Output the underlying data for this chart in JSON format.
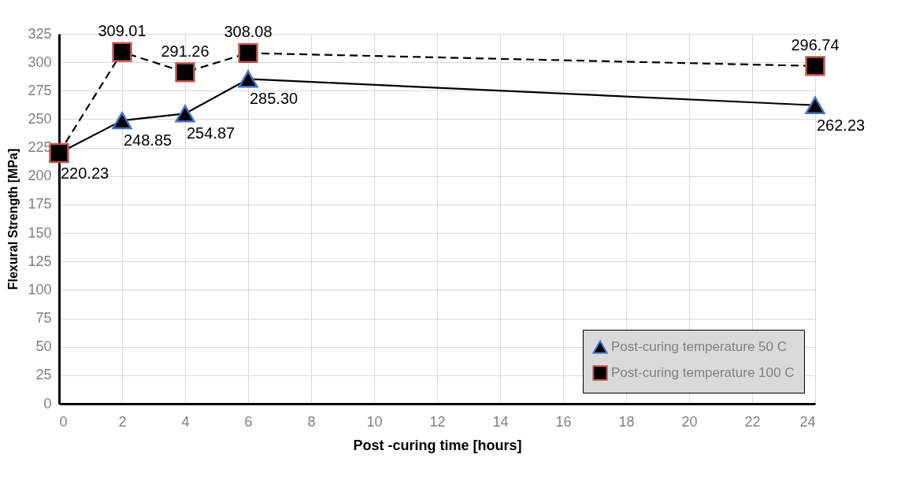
{
  "chart_data": {
    "type": "line",
    "xlabel": "Post -curing time [hours]",
    "ylabel": "Flexural Strength [MPa]",
    "x": [
      0,
      2,
      4,
      6,
      24
    ],
    "xlim": [
      0,
      24
    ],
    "xticks": [
      0,
      2,
      4,
      6,
      8,
      10,
      12,
      14,
      16,
      18,
      20,
      22,
      24
    ],
    "ylim": [
      0,
      325
    ],
    "yticks": [
      0,
      25,
      50,
      75,
      100,
      125,
      150,
      175,
      200,
      225,
      250,
      275,
      300,
      325
    ],
    "grid": true,
    "legend": "bottom right",
    "series": [
      {
        "name": "Post-curing temperature 50 C",
        "color": "#4472c4",
        "marker": "triangle",
        "line_style": "solid",
        "values": [
          220.23,
          248.85,
          254.87,
          285.3,
          262.23
        ],
        "value_labels": [
          "220.23",
          "248.85",
          "254.87",
          "285.30",
          "262.23"
        ]
      },
      {
        "name": "Post-curing temperature 100 C",
        "color": "#c0504d",
        "marker": "square",
        "line_style": "dashed",
        "values": [
          220.23,
          309.01,
          291.26,
          308.08,
          296.74
        ],
        "value_labels": [
          null,
          "309.01",
          "291.26",
          "308.08",
          "296.74"
        ]
      }
    ]
  }
}
